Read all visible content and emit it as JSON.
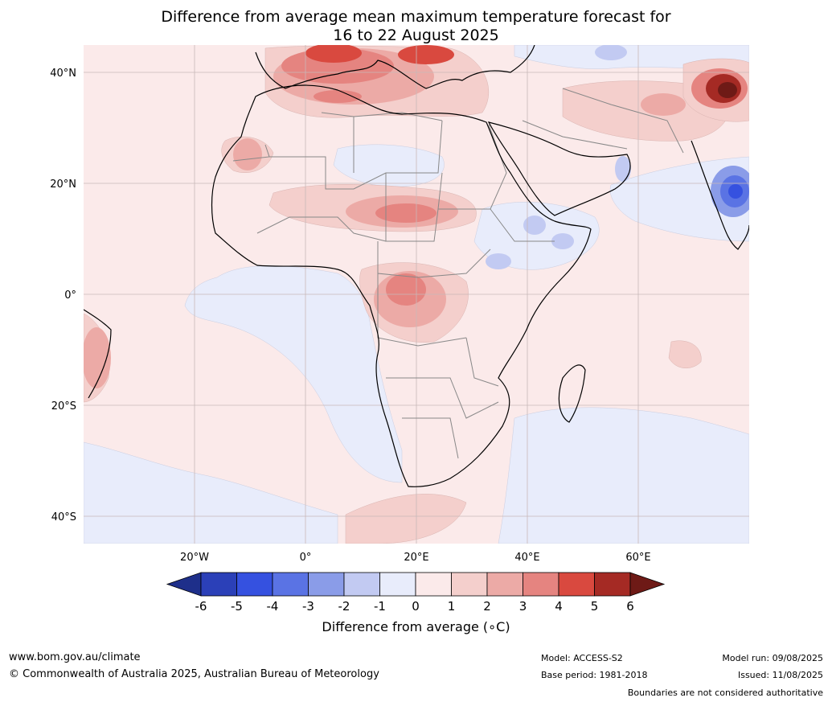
{
  "title": {
    "line1": "Difference from average mean maximum temperature forecast for",
    "line2": "16 to 22 August 2025"
  },
  "map": {
    "lat_labels": [
      "40°N",
      "20°N",
      "0°",
      "20°S",
      "40°S"
    ],
    "lon_labels": [
      "20°W",
      "0°",
      "20°E",
      "40°E",
      "60°E"
    ]
  },
  "colorbar": {
    "ticks": [
      "-6",
      "-5",
      "-4",
      "-3",
      "-2",
      "-1",
      "0",
      "1",
      "2",
      "3",
      "4",
      "5",
      "6"
    ],
    "colors": [
      "#1e2f8a",
      "#2b40b8",
      "#3551e0",
      "#5a73e4",
      "#8a9ce8",
      "#c2caf2",
      "#e8ecfb",
      "#fbeaea",
      "#f4cfcc",
      "#ecaaa6",
      "#e58480",
      "#d9493f",
      "#a52a24",
      "#6e1a16"
    ],
    "label": "Difference from average (∘C)"
  },
  "footer": {
    "website": "www.bom.gov.au/climate",
    "copyright": "© Commonwealth of Australia 2025, Australian Bureau of Meteorology",
    "model": "Model: ACCESS-S2",
    "base_period": "Base period: 1981-2018",
    "model_run": "Model run: 09/08/2025",
    "issued": "Issued: 11/08/2025",
    "disclaimer": "Boundaries are not considered authoritative"
  }
}
